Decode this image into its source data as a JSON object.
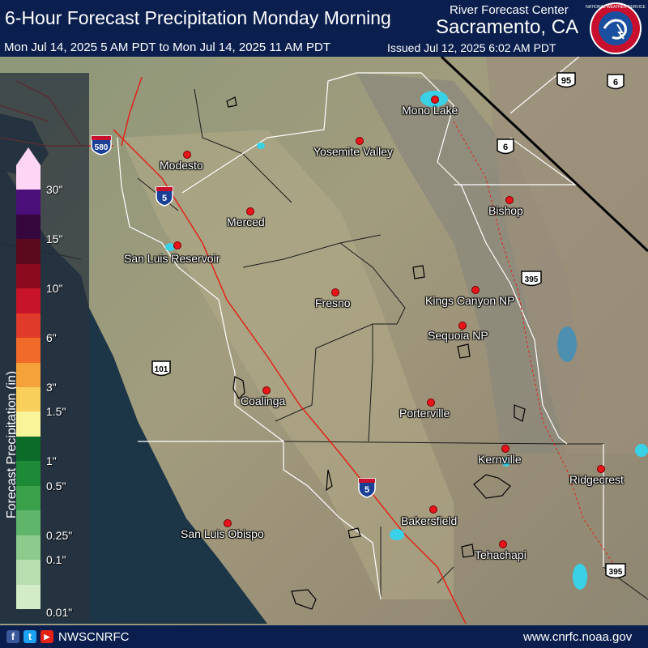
{
  "header": {
    "title": "6-Hour Forecast Precipitation Monday Morning",
    "rfc_label": "River Forecast Center",
    "office": "Sacramento, CA",
    "valid_range": "Mon Jul 14, 2025 5 AM PDT to Mon Jul 14, 2025 11 AM PDT",
    "issued": "Issued Jul 12, 2025 6:02 AM PDT",
    "logo_text": "NATIONAL WEATHER SERVICE"
  },
  "cities": [
    {
      "name": "Mono Lake"
    },
    {
      "name": "Modesto"
    },
    {
      "name": "Yosemite Valley"
    },
    {
      "name": "Bishop"
    },
    {
      "name": "Merced"
    },
    {
      "name": "San Luis Reservoir"
    },
    {
      "name": "Fresno"
    },
    {
      "name": "Kings Canyon NP"
    },
    {
      "name": "Sequoia NP"
    },
    {
      "name": "Coalinga"
    },
    {
      "name": "Porterville"
    },
    {
      "name": "Kernville"
    },
    {
      "name": "Ridgecrest"
    },
    {
      "name": "Bakersfield"
    },
    {
      "name": "San Luis Obispo"
    },
    {
      "name": "Tehachapi"
    }
  ],
  "highways": {
    "i5_a": "5",
    "i5_b": "5",
    "i580": "580",
    "us101": "101",
    "us95": "95",
    "us6_a": "6",
    "us6_b": "6",
    "us395_a": "395",
    "us395_b": "395"
  },
  "legend": {
    "title": "Forecast Precipitation (in)",
    "ticks": [
      "30\"",
      "15\"",
      "10\"",
      "6\"",
      "3\"",
      "1.5\"",
      "1\"",
      "0.5\"",
      "0.25\"",
      "0.1\"",
      "0.01\""
    ],
    "colors": [
      "#ffd5f5",
      "#4b0f7a",
      "#35073d",
      "#5a0a1c",
      "#8b0a1e",
      "#c8142a",
      "#e03a2a",
      "#f06a2a",
      "#f5a23a",
      "#f7cf5a",
      "#f9f39a",
      "#0d6b2a",
      "#1e8a38",
      "#3aa04a",
      "#5fb66a",
      "#8dca8d",
      "#b8deb0",
      "#d2ecc8"
    ]
  },
  "footer": {
    "handle": "NWSCNRFC",
    "url": "www.cnrfc.noaa.gov",
    "facebook": "f",
    "twitter": "t",
    "youtube": "▶"
  },
  "colors": {
    "banner": "#0a1f4d",
    "terrain": "#8f9a78",
    "ocean": "#1c3547",
    "interstate_route": "#e2231a",
    "county_lines": "#1a1a1a",
    "basin_lines": "#ffffff",
    "lakes": "#39d1e6"
  }
}
